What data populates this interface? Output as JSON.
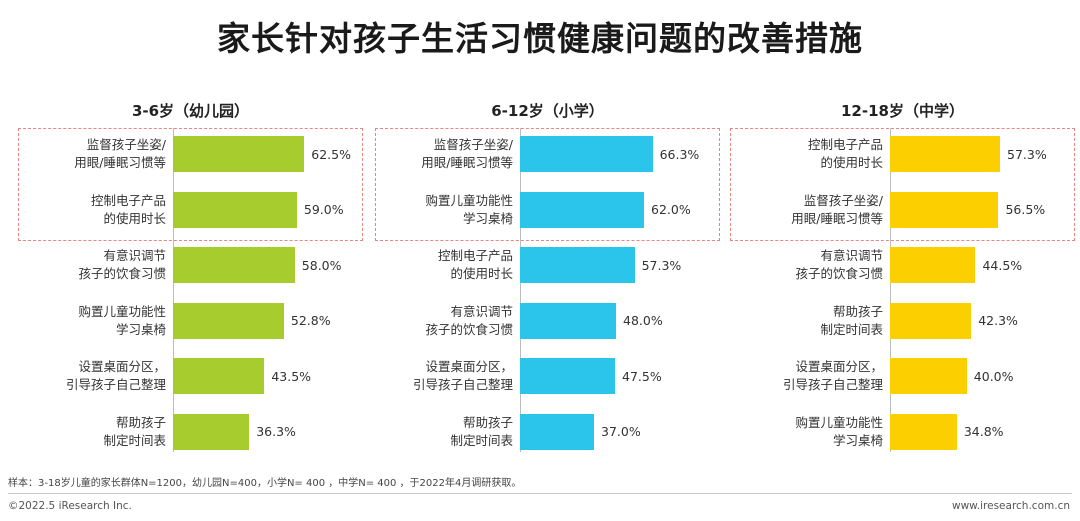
{
  "title": "家长针对孩子生活习惯健康问题的改善措施",
  "footnote": "样本：3-18岁儿童的家长群体N=1200，幼儿园N=400，小学N= 400 ，中学N= 400 ，于2022年4月调研获取。",
  "copyright": "©2022.5 iResearch Inc.",
  "website": "www.iresearch.com.cn",
  "colors": {
    "kindergarten": "#a6cc2d",
    "primary": "#2bc4eb",
    "middle": "#fbcf00",
    "highlight_border": "#e88585"
  },
  "chart_data": [
    {
      "type": "bar",
      "orientation": "horizontal",
      "title": "3-6岁（幼儿园）",
      "categories": [
        "监督孩子坐姿/\n用眼/睡眠习惯等",
        "控制电子产品\n的使用时长",
        "有意识调节\n孩子的饮食习惯",
        "购置儿童功能性\n学习桌椅",
        "设置桌面分区，\n引导孩子自己整理",
        "帮助孩子\n制定时间表"
      ],
      "values": [
        62.5,
        59.0,
        58.0,
        52.8,
        43.5,
        36.3
      ],
      "value_labels": [
        "62.5%",
        "59.0%",
        "58.0%",
        "52.8%",
        "43.5%",
        "36.3%"
      ],
      "highlighted_top": 2
    },
    {
      "type": "bar",
      "orientation": "horizontal",
      "title": "6-12岁（小学）",
      "categories": [
        "监督孩子坐姿/\n用眼/睡眠习惯等",
        "购置儿童功能性\n学习桌椅",
        "控制电子产品\n的使用时长",
        "有意识调节\n孩子的饮食习惯",
        "设置桌面分区，\n引导孩子自己整理",
        "帮助孩子\n制定时间表"
      ],
      "values": [
        66.3,
        62.0,
        57.3,
        48.0,
        47.5,
        37.0
      ],
      "value_labels": [
        "66.3%",
        "62.0%",
        "57.3%",
        "48.0%",
        "47.5%",
        "37.0%"
      ],
      "highlighted_top": 2
    },
    {
      "type": "bar",
      "orientation": "horizontal",
      "title": "12-18岁（中学）",
      "categories": [
        "控制电子产品\n的使用时长",
        "监督孩子坐姿/\n用眼/睡眠习惯等",
        "有意识调节\n孩子的饮食习惯",
        "帮助孩子\n制定时间表",
        "设置桌面分区，\n引导孩子自己整理",
        "购置儿童功能性\n学习桌椅"
      ],
      "values": [
        57.3,
        56.5,
        44.5,
        42.3,
        40.0,
        34.8
      ],
      "value_labels": [
        "57.3%",
        "56.5%",
        "44.5%",
        "42.3%",
        "40.0%",
        "34.8%"
      ],
      "highlighted_top": 2
    }
  ]
}
